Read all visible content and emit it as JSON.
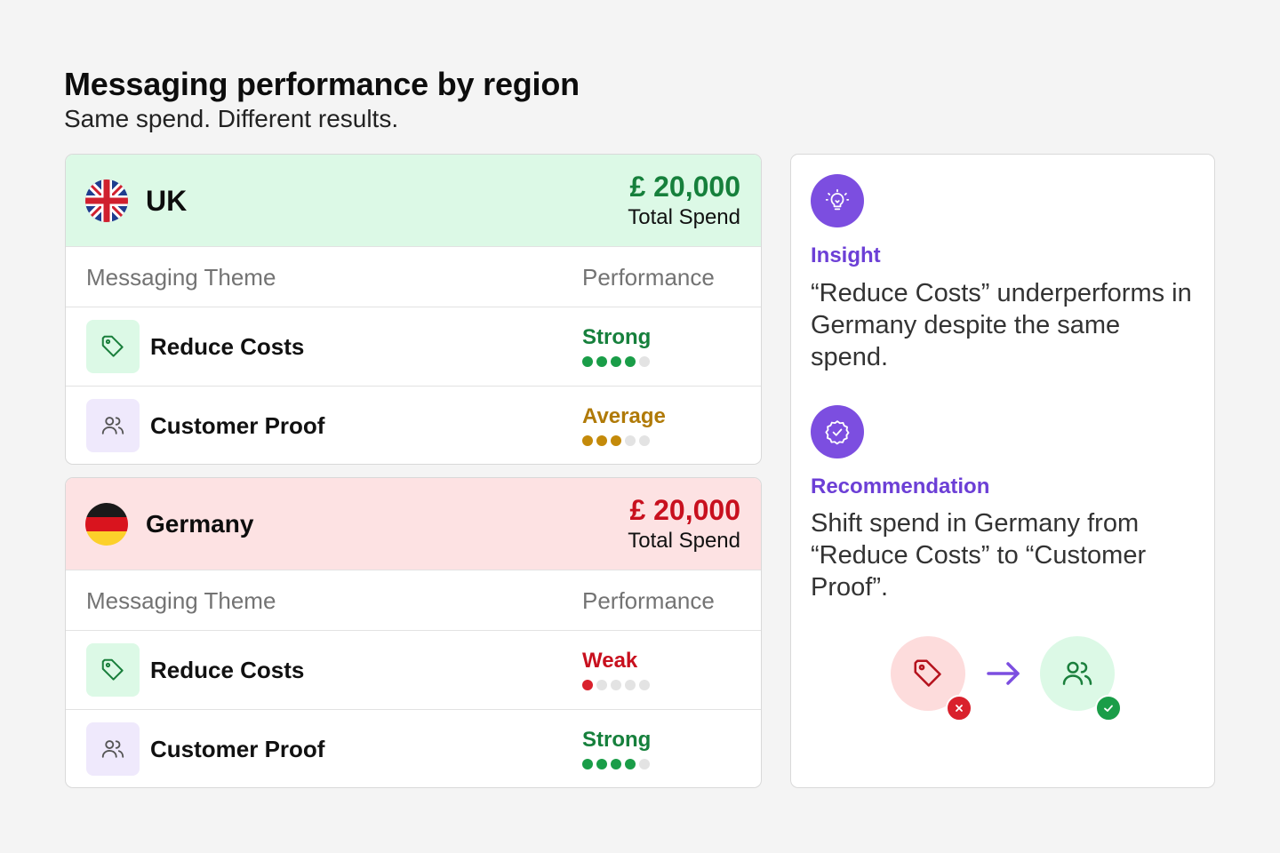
{
  "header": {
    "title": "Messaging performance by region",
    "subtitle": "Same spend. Different results."
  },
  "columns": {
    "theme": "Messaging Theme",
    "performance": "Performance"
  },
  "regions": [
    {
      "name": "UK",
      "flag_icon": "uk-flag-icon",
      "spend": "£ 20,000",
      "spend_label": "Total Spend",
      "header_color": "#dcf9e6",
      "themes": [
        {
          "label": "Reduce Costs",
          "icon": "tag-icon",
          "performance": "Strong",
          "rating": 4,
          "max_rating": 5
        },
        {
          "label": "Customer Proof",
          "icon": "users-icon",
          "performance": "Average",
          "rating": 3,
          "max_rating": 5
        }
      ]
    },
    {
      "name": "Germany",
      "flag_icon": "germany-flag-icon",
      "spend": "£ 20,000",
      "spend_label": "Total Spend",
      "header_color": "#fde2e3",
      "themes": [
        {
          "label": "Reduce Costs",
          "icon": "tag-icon",
          "performance": "Weak",
          "rating": 1,
          "max_rating": 5
        },
        {
          "label": "Customer Proof",
          "icon": "users-icon",
          "performance": "Strong",
          "rating": 4,
          "max_rating": 5
        }
      ]
    }
  ],
  "insight": {
    "icon": "lightbulb-icon",
    "label": "Insight",
    "text": "“Reduce Costs” underperforms in Germany despite the same spend."
  },
  "recommendation": {
    "icon": "verified-badge-icon",
    "label": "Recommendation",
    "text": "Shift spend in Germany from “Reduce Costs” to “Customer Proof”."
  },
  "colors": {
    "strong": "#1a9d48",
    "average": "#c48a0a",
    "weak": "#d9212c",
    "empty": "#e3e3e3",
    "accent": "#7c4ee0"
  }
}
